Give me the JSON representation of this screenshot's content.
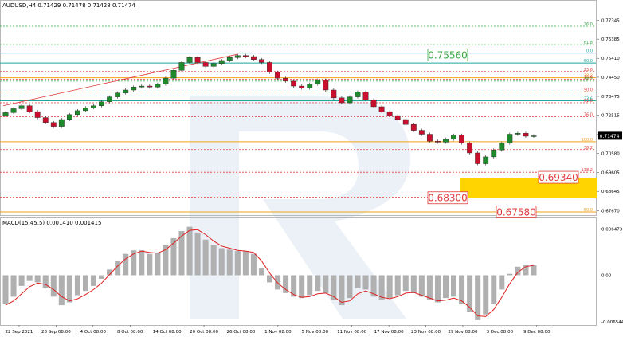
{
  "header": {
    "title": "AUDUSD,H4  0.71429 0.71478 0.71428 0.71474",
    "macd_title": "MACD(15,45,5) 0.001410 0.001415"
  },
  "colors": {
    "candle_up": "#1f8a2b",
    "candle_down": "#c8102e",
    "level_teal": "#1aa89a",
    "level_orange": "#f2a21b",
    "level_red": "#e03a3a",
    "level_green": "#3aa745",
    "target_zone": "#ffd400",
    "macd_signal": "#e02020",
    "macd_hist": "#b0b0b0",
    "watermark": "#dbe5f0"
  },
  "chart_data": [
    {
      "type": "candlestick",
      "symbol": "AUDUSD",
      "timeframe": "H4",
      "ohlc_last": {
        "open": 0.71429,
        "high": 0.71478,
        "low": 0.71428,
        "close": 0.71474
      },
      "last_price_label": "0.71474",
      "ylim": [
        0.6752,
        0.7781
      ],
      "yticks": [
        "0.77345",
        "0.76385",
        "0.75410",
        "0.74450",
        "0.73475",
        "0.72515",
        "0.71540",
        "0.70580",
        "0.69605",
        "0.68645",
        "0.67670"
      ],
      "xlabels": [
        "22 Sep 2021",
        "28 Sep 08:00",
        "4 Oct 08:00",
        "8 Oct 08:00",
        "14 Oct 08:00",
        "20 Oct 08:00",
        "26 Oct 08:00",
        "1 Nov 08:00",
        "5 Nov 08:00",
        "11 Nov 08:00",
        "17 Nov 08:00",
        "23 Nov 08:00",
        "29 Nov 08:00",
        "3 Dec 08:00",
        "9 Dec 08:00"
      ],
      "closes": [
        0.7265,
        0.7285,
        0.73,
        0.727,
        0.724,
        0.7215,
        0.7195,
        0.723,
        0.7255,
        0.7275,
        0.729,
        0.73,
        0.732,
        0.7345,
        0.7365,
        0.738,
        0.7395,
        0.74,
        0.7395,
        0.741,
        0.744,
        0.748,
        0.752,
        0.7545,
        0.752,
        0.75,
        0.7515,
        0.753,
        0.7545,
        0.7555,
        0.755,
        0.7535,
        0.752,
        0.747,
        0.744,
        0.7425,
        0.74,
        0.739,
        0.741,
        0.743,
        0.738,
        0.734,
        0.7315,
        0.7345,
        0.737,
        0.733,
        0.7295,
        0.727,
        0.725,
        0.723,
        0.7205,
        0.7175,
        0.7155,
        0.712,
        0.7115,
        0.713,
        0.715,
        0.711,
        0.706,
        0.7005,
        0.704,
        0.7075,
        0.711,
        0.7155,
        0.716,
        0.7145,
        0.7147
      ],
      "levels": [
        {
          "label": "76.0",
          "price": 0.7704,
          "kind": "green"
        },
        {
          "label": "61.8",
          "price": 0.761,
          "kind": "green"
        },
        {
          "label": "0.0",
          "price": 0.7568,
          "kind": "teal"
        },
        {
          "label": "50.0",
          "price": 0.7517,
          "kind": "teal"
        },
        {
          "label": "23.6",
          "price": 0.7474,
          "kind": "red"
        },
        {
          "label": "38.2",
          "price": 0.7442,
          "kind": "orange"
        },
        {
          "label": "14.6",
          "price": 0.7434,
          "kind": "red"
        },
        {
          "label": "38.2",
          "price": 0.7425,
          "kind": "green"
        },
        {
          "label": "50.0",
          "price": 0.737,
          "kind": "red"
        },
        {
          "label": "23.6",
          "price": 0.7325,
          "kind": "teal"
        },
        {
          "label": "61.8",
          "price": 0.7315,
          "kind": "red"
        },
        {
          "label": "76.0",
          "price": 0.7245,
          "kind": "red"
        },
        {
          "label": "100.0",
          "price": 0.7117,
          "kind": "orange"
        },
        {
          "label": "38.2",
          "price": 0.7077,
          "kind": "red"
        },
        {
          "label": "138.2",
          "price": 0.6962,
          "kind": "red"
        },
        {
          "label": "161.8",
          "price": 0.6835,
          "kind": "red"
        },
        {
          "label": "50.0",
          "price": 0.676,
          "kind": "orange"
        }
      ],
      "callouts": [
        {
          "text": "0.75560",
          "price": 0.7556,
          "color": "green"
        },
        {
          "text": "0.69340",
          "price": 0.6934,
          "color": "red"
        },
        {
          "text": "0.68300",
          "price": 0.683,
          "color": "red"
        },
        {
          "text": "0.67580",
          "price": 0.6758,
          "color": "red"
        }
      ],
      "target_zone": {
        "top": 0.6934,
        "bottom": 0.683
      }
    },
    {
      "type": "macd",
      "params": "15,45,5",
      "ylim": [
        -0.00665,
        0.00665
      ],
      "yticks": [
        "0.006473",
        "0.00",
        "-0.006544"
      ],
      "histogram": [
        -0.004,
        -0.003,
        -0.0015,
        -0.0008,
        -0.001,
        -0.0018,
        -0.003,
        -0.0042,
        -0.0038,
        -0.0028,
        -0.0022,
        -0.0015,
        -0.0005,
        0.0008,
        0.002,
        0.003,
        0.0035,
        0.0035,
        0.003,
        0.0032,
        0.0042,
        0.0052,
        0.0062,
        0.0068,
        0.006,
        0.005,
        0.0042,
        0.0038,
        0.0036,
        0.0034,
        0.0034,
        0.003,
        0.001,
        -0.001,
        -0.002,
        -0.0025,
        -0.003,
        -0.0032,
        -0.0028,
        -0.0022,
        -0.0025,
        -0.0035,
        -0.0042,
        -0.0032,
        -0.0018,
        -0.002,
        -0.003,
        -0.0034,
        -0.0032,
        -0.0028,
        -0.0022,
        -0.0025,
        -0.003,
        -0.0034,
        -0.0038,
        -0.0032,
        -0.003,
        -0.004,
        -0.0052,
        -0.0063,
        -0.0055,
        -0.004,
        -0.002,
        0.0002,
        0.0012,
        0.0014,
        0.0014
      ],
      "signal": [
        -0.0042,
        -0.0036,
        -0.0026,
        -0.0016,
        -0.0011,
        -0.0013,
        -0.002,
        -0.003,
        -0.0036,
        -0.0033,
        -0.0027,
        -0.002,
        -0.0011,
        0.0001,
        0.0013,
        0.0023,
        0.003,
        0.0034,
        0.0032,
        0.0031,
        0.0036,
        0.0045,
        0.0055,
        0.0063,
        0.0064,
        0.0057,
        0.0048,
        0.0041,
        0.0038,
        0.0035,
        0.0034,
        0.0032,
        0.002,
        0.0003,
        -0.0011,
        -0.002,
        -0.0027,
        -0.0031,
        -0.003,
        -0.0026,
        -0.0025,
        -0.003,
        -0.0038,
        -0.0036,
        -0.0026,
        -0.0022,
        -0.0026,
        -0.0031,
        -0.0033,
        -0.003,
        -0.0025,
        -0.0024,
        -0.0028,
        -0.0032,
        -0.0036,
        -0.0035,
        -0.0032,
        -0.0036,
        -0.0045,
        -0.0057,
        -0.0058,
        -0.0048,
        -0.0031,
        -0.0012,
        0.0004,
        0.0012,
        0.0014
      ]
    }
  ]
}
